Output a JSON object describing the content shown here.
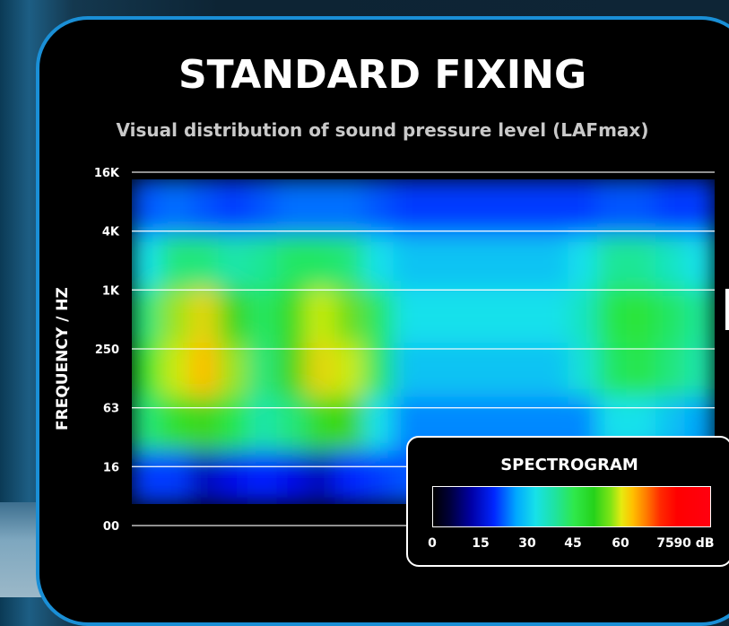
{
  "chart_data": {
    "type": "heatmap",
    "title": "STANDARD FIXING",
    "subtitle": "Visual distribution of sound pressure level (LAFmax)",
    "ylabel": "FREQUENCY / HZ",
    "xlabel": "",
    "y_ticks": [
      "16K",
      "4K",
      "1K",
      "250",
      "63",
      "16",
      "00"
    ],
    "grid": true,
    "colorbar": {
      "title": "SPECTROGRAM",
      "unit": "dB",
      "ticks": [
        "0",
        "15",
        "30",
        "45",
        "60",
        "75",
        "90 dB"
      ],
      "range": [
        0,
        90
      ],
      "placement": "bottom-right"
    },
    "time_bins": 20,
    "freq_bands": [
      "00-16",
      "16-63",
      "63-250",
      "250-1K",
      "1K-4K",
      "4K-16K"
    ],
    "levels_db": [
      [
        18,
        18,
        12,
        14,
        16,
        14,
        12,
        16,
        18,
        20,
        20,
        20,
        20,
        20,
        20,
        22,
        22,
        20,
        18,
        18
      ],
      [
        40,
        48,
        52,
        44,
        36,
        40,
        50,
        52,
        30,
        24,
        24,
        24,
        24,
        24,
        24,
        24,
        30,
        30,
        28,
        26
      ],
      [
        46,
        58,
        62,
        56,
        40,
        52,
        60,
        58,
        42,
        28,
        28,
        28,
        28,
        28,
        28,
        32,
        42,
        44,
        40,
        36
      ],
      [
        40,
        56,
        60,
        52,
        42,
        50,
        58,
        54,
        42,
        30,
        30,
        30,
        30,
        30,
        30,
        34,
        44,
        46,
        42,
        38
      ],
      [
        30,
        40,
        40,
        36,
        38,
        42,
        42,
        40,
        30,
        28,
        28,
        28,
        28,
        28,
        28,
        30,
        38,
        38,
        34,
        30
      ],
      [
        20,
        22,
        20,
        18,
        20,
        22,
        22,
        22,
        20,
        18,
        18,
        18,
        18,
        18,
        18,
        18,
        20,
        20,
        18,
        18
      ]
    ]
  }
}
